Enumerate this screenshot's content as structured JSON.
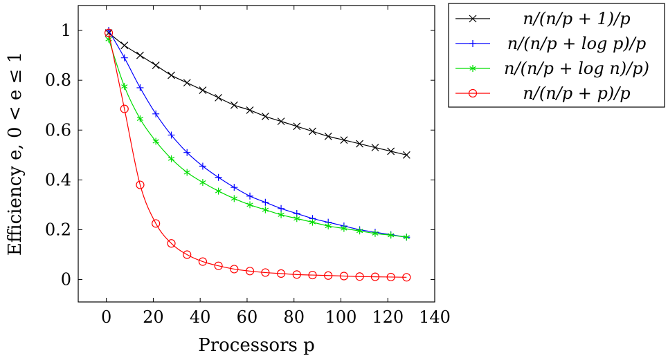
{
  "chart_data": {
    "type": "line",
    "title": "",
    "xlabel": "Processors p",
    "ylabel": "Efficiency e, 0 < e ≤ 1",
    "xlim": [
      -12,
      140
    ],
    "ylim": [
      -0.09,
      1.1
    ],
    "x_ticks": [
      0,
      20,
      40,
      60,
      80,
      100,
      120,
      140
    ],
    "y_ticks": [
      0,
      0.2,
      0.4,
      0.6,
      0.8,
      1
    ],
    "x_tick_labels": [
      "0",
      "20",
      "40",
      "60",
      "80",
      "100",
      "120",
      "140"
    ],
    "y_tick_labels": [
      "0",
      "0.2",
      "0.4",
      "0.6",
      "0.8",
      "1"
    ],
    "grid": false,
    "legend_position": "outside-right-top",
    "x": [
      1,
      7.7,
      14.4,
      21.1,
      27.7,
      34.4,
      41.1,
      47.8,
      54.5,
      61.2,
      67.8,
      74.5,
      81.2,
      87.9,
      94.6,
      101.3,
      108,
      114.6,
      121.3,
      128
    ],
    "series": [
      {
        "name": "n/(n/p + 1)/p",
        "color": "#000000",
        "marker": "x",
        "values": [
          0.99,
          0.94,
          0.9,
          0.86,
          0.82,
          0.79,
          0.76,
          0.73,
          0.7,
          0.68,
          0.655,
          0.635,
          0.615,
          0.595,
          0.575,
          0.56,
          0.545,
          0.53,
          0.515,
          0.5
        ]
      },
      {
        "name": "n/(n/p + log p)/p",
        "color": "#0000ff",
        "marker": "plus",
        "values": [
          1.0,
          0.89,
          0.77,
          0.665,
          0.58,
          0.51,
          0.455,
          0.41,
          0.37,
          0.335,
          0.31,
          0.285,
          0.265,
          0.245,
          0.23,
          0.215,
          0.2,
          0.19,
          0.18,
          0.17
        ]
      },
      {
        "name": "n/(n/p + log n)/p)",
        "color": "#00dd00",
        "marker": "asterisk",
        "values": [
          0.965,
          0.775,
          0.645,
          0.555,
          0.485,
          0.43,
          0.39,
          0.355,
          0.325,
          0.3,
          0.28,
          0.26,
          0.245,
          0.23,
          0.215,
          0.205,
          0.195,
          0.185,
          0.178,
          0.17
        ]
      },
      {
        "name": "n/(n/p + p)/p",
        "color": "#ff0000",
        "marker": "circle",
        "values": [
          0.99,
          0.685,
          0.38,
          0.225,
          0.145,
          0.1,
          0.072,
          0.055,
          0.042,
          0.034,
          0.028,
          0.024,
          0.02,
          0.018,
          0.016,
          0.014,
          0.012,
          0.011,
          0.01,
          0.009
        ]
      }
    ]
  }
}
